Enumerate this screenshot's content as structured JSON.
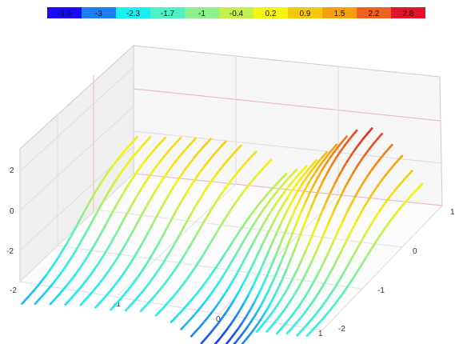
{
  "chart_data": {
    "type": "3d-line",
    "title": "",
    "xlabel": "",
    "ylabel": "",
    "zlabel": "",
    "ticks": {
      "x": [
        "-2",
        "-1",
        "0",
        "1"
      ],
      "y": [
        "-2",
        "-1",
        "0",
        "1"
      ],
      "z": [
        "-2",
        "0",
        "2"
      ]
    },
    "xlim": [
      -2,
      1
    ],
    "ylim": [
      -2,
      1
    ],
    "zlim": [
      -3.3,
      3.3
    ],
    "legend": {
      "placement": "top",
      "labels": [
        "-3.6",
        "-3",
        "-2.3",
        "-1.7",
        "-1",
        "-0.4",
        "0.2",
        "0.9",
        "1.5",
        "2.2",
        "2.8"
      ],
      "colors": [
        "#1a0af5",
        "#1c7ef5",
        "#19f0f0",
        "#4ef0c4",
        "#8cf08c",
        "#c4f04e",
        "#f5f50f",
        "#f5c80f",
        "#f5a00f",
        "#f0601e",
        "#e0142d"
      ]
    },
    "series": [
      {
        "x": 0.85,
        "z_low": -2.1,
        "z_high": 0.3
      },
      {
        "x": 0.75,
        "z_low": -2.2,
        "z_high": 0.9
      },
      {
        "x": 0.65,
        "z_low": -2.2,
        "z_high": 1.6
      },
      {
        "x": 0.55,
        "z_low": -2.3,
        "z_high": 2.1
      },
      {
        "x": 0.45,
        "z_low": -2.3,
        "z_high": 2.6
      },
      {
        "x": 0.35,
        "z_low": -2.4,
        "z_high": 2.8
      },
      {
        "x": 0.2,
        "z_low": -3.2,
        "z_high": 2.6
      },
      {
        "x": 0.1,
        "z_low": -3.4,
        "z_high": 2.2
      },
      {
        "x": 0.0,
        "z_low": -3.6,
        "z_high": 1.7
      },
      {
        "x": -0.1,
        "z_low": -3.6,
        "z_high": 1.2
      },
      {
        "x": -0.2,
        "z_low": -3.4,
        "z_high": 0.7
      },
      {
        "x": -0.3,
        "z_low": -3.1,
        "z_high": 0.3
      },
      {
        "x": -0.4,
        "z_low": -2.8,
        "z_high": 0.0
      },
      {
        "x": -0.5,
        "z_low": -2.5,
        "z_high": -0.3
      },
      {
        "x": -0.65,
        "z_low": -2.3,
        "z_high": 0.3
      },
      {
        "x": -0.8,
        "z_low": -2.2,
        "z_high": 0.6
      },
      {
        "x": -0.95,
        "z_low": -2.3,
        "z_high": 0.8
      },
      {
        "x": -1.1,
        "z_low": -2.4,
        "z_high": 0.9
      },
      {
        "x": -1.25,
        "z_low": -2.4,
        "z_high": 0.9
      },
      {
        "x": -1.4,
        "z_low": -2.4,
        "z_high": 0.8
      },
      {
        "x": -1.55,
        "z_low": -2.5,
        "z_high": 0.7
      },
      {
        "x": -1.7,
        "z_low": -2.6,
        "z_high": 0.6
      },
      {
        "x": -1.85,
        "z_low": -2.7,
        "z_high": 0.5
      },
      {
        "x": -1.98,
        "z_low": -2.8,
        "z_high": 0.4
      }
    ]
  }
}
